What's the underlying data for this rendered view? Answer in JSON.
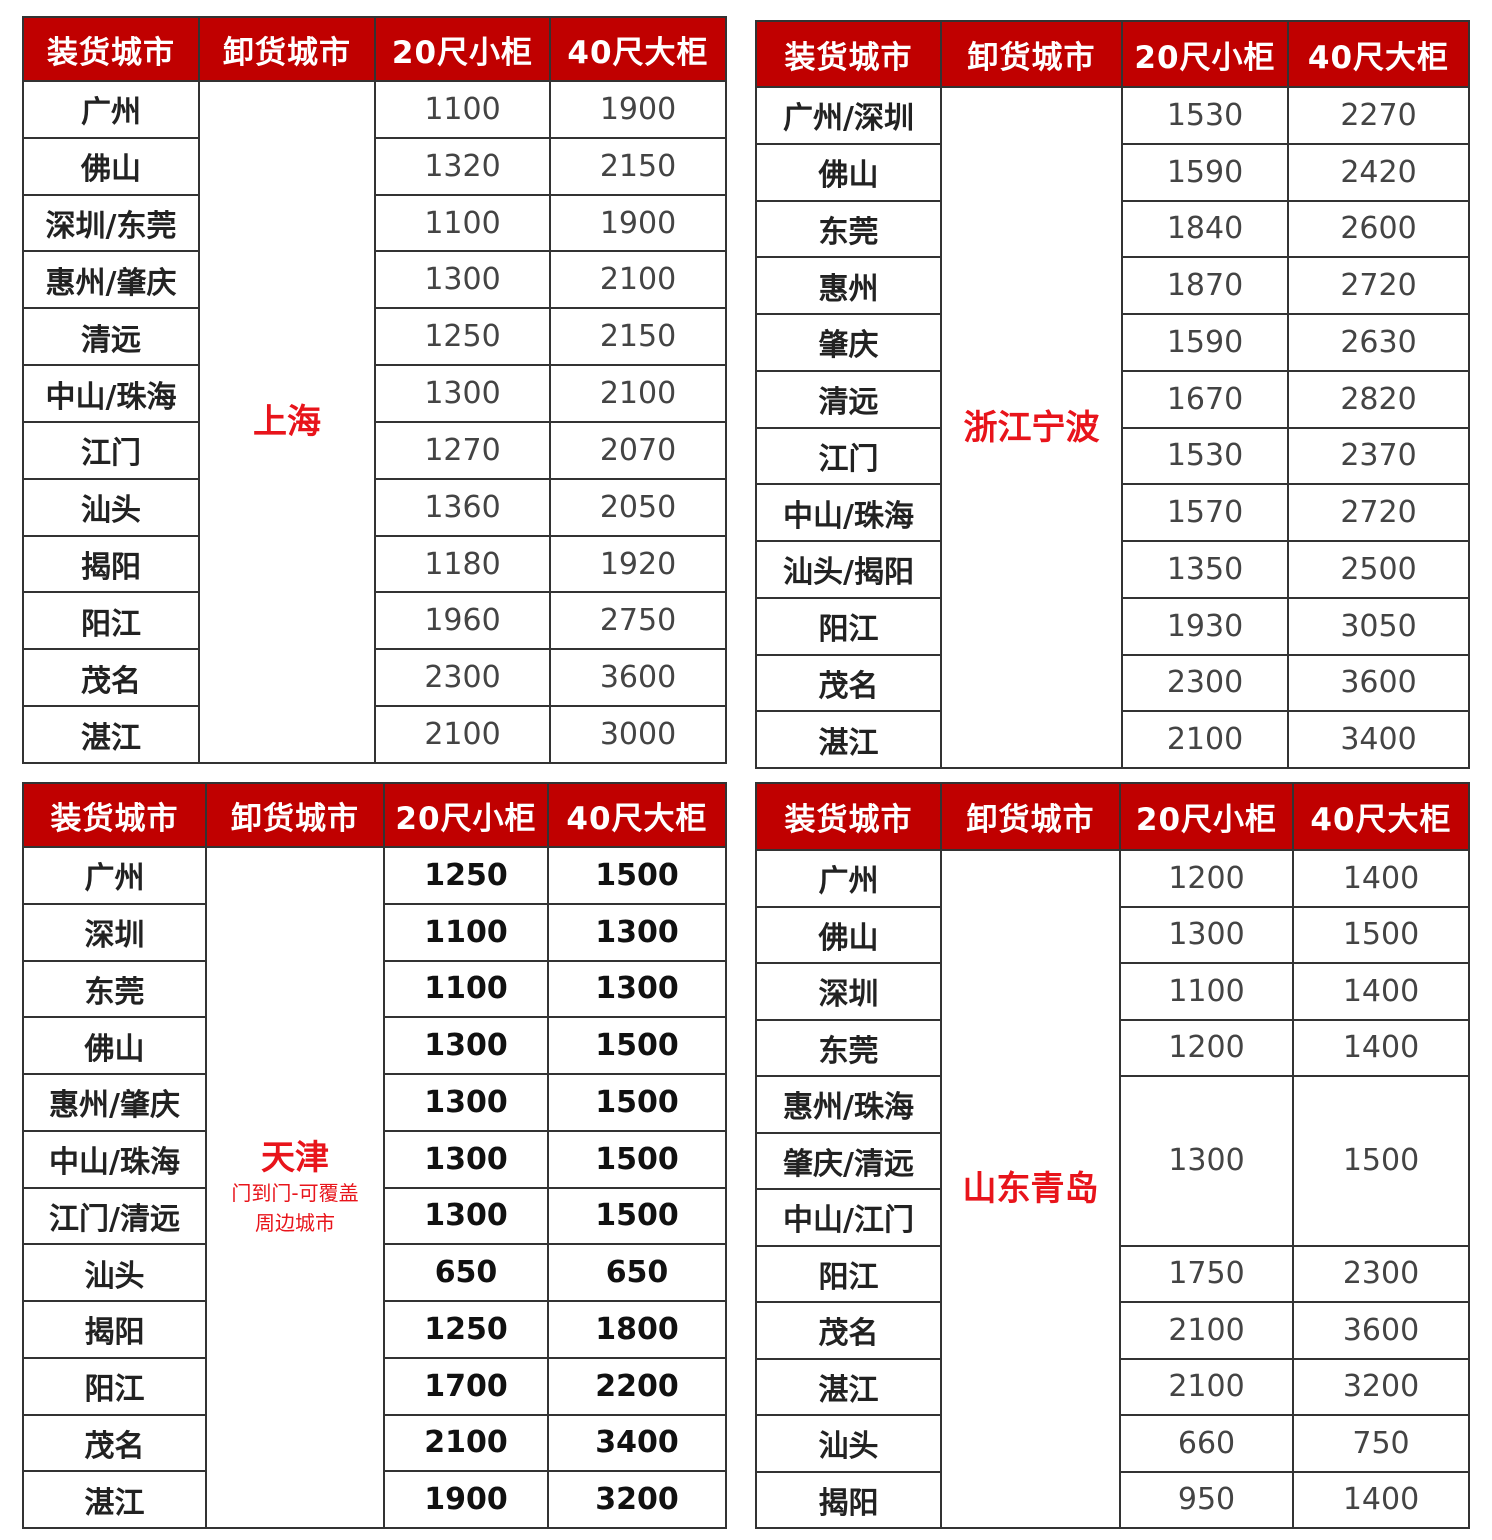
{
  "accent_color": "#c00000",
  "destination_color": "#e8141b",
  "headers": [
    "装货城市",
    "卸货城市",
    "20尺小柜",
    "40尺大柜"
  ],
  "tables": [
    {
      "destination": "上海",
      "destination_note": [
        "",
        ""
      ],
      "rows": [
        {
          "load": "广州",
          "p20": "1100",
          "p40": "1900"
        },
        {
          "load": "佛山",
          "p20": "1320",
          "p40": "2150"
        },
        {
          "load": "深圳/东莞",
          "p20": "1100",
          "p40": "1900"
        },
        {
          "load": "惠州/肇庆",
          "p20": "1300",
          "p40": "2100"
        },
        {
          "load": "清远",
          "p20": "1250",
          "p40": "2150"
        },
        {
          "load": "中山/珠海",
          "p20": "1300",
          "p40": "2100"
        },
        {
          "load": "江门",
          "p20": "1270",
          "p40": "2070"
        },
        {
          "load": "汕头",
          "p20": "1360",
          "p40": "2050"
        },
        {
          "load": "揭阳",
          "p20": "1180",
          "p40": "1920"
        },
        {
          "load": "阳江",
          "p20": "1960",
          "p40": "2750"
        },
        {
          "load": "茂名",
          "p20": "2300",
          "p40": "3600"
        },
        {
          "load": "湛江",
          "p20": "2100",
          "p40": "3000"
        }
      ]
    },
    {
      "destination": "浙江宁波",
      "destination_note": [
        "",
        ""
      ],
      "rows": [
        {
          "load": "广州/深圳",
          "p20": "1530",
          "p40": "2270"
        },
        {
          "load": "佛山",
          "p20": "1590",
          "p40": "2420"
        },
        {
          "load": "东莞",
          "p20": "1840",
          "p40": "2600"
        },
        {
          "load": "惠州",
          "p20": "1870",
          "p40": "2720"
        },
        {
          "load": "肇庆",
          "p20": "1590",
          "p40": "2630"
        },
        {
          "load": "清远",
          "p20": "1670",
          "p40": "2820"
        },
        {
          "load": "江门",
          "p20": "1530",
          "p40": "2370"
        },
        {
          "load": "中山/珠海",
          "p20": "1570",
          "p40": "2720"
        },
        {
          "load": "汕头/揭阳",
          "p20": "1350",
          "p40": "2500"
        },
        {
          "load": "阳江",
          "p20": "1930",
          "p40": "3050"
        },
        {
          "load": "茂名",
          "p20": "2300",
          "p40": "3600"
        },
        {
          "load": "湛江",
          "p20": "2100",
          "p40": "3400"
        }
      ]
    },
    {
      "destination": "天津",
      "destination_note": [
        "门到门-可覆盖",
        "周边城市"
      ],
      "rows": [
        {
          "load": "广州",
          "p20": "1250",
          "p40": "1500"
        },
        {
          "load": "深圳",
          "p20": "1100",
          "p40": "1300"
        },
        {
          "load": "东莞",
          "p20": "1100",
          "p40": "1300"
        },
        {
          "load": "佛山",
          "p20": "1300",
          "p40": "1500"
        },
        {
          "load": "惠州/肇庆",
          "p20": "1300",
          "p40": "1500"
        },
        {
          "load": "中山/珠海",
          "p20": "1300",
          "p40": "1500"
        },
        {
          "load": "江门/清远",
          "p20": "1300",
          "p40": "1500"
        },
        {
          "load": "汕头",
          "p20": "650",
          "p40": "650"
        },
        {
          "load": "揭阳",
          "p20": "1250",
          "p40": "1800"
        },
        {
          "load": "阳江",
          "p20": "1700",
          "p40": "2200"
        },
        {
          "load": "茂名",
          "p20": "2100",
          "p40": "3400"
        },
        {
          "load": "湛江",
          "p20": "1900",
          "p40": "3200"
        }
      ]
    },
    {
      "destination": "山东青岛",
      "destination_note": [
        "",
        ""
      ],
      "rows": [
        {
          "load": "广州",
          "p20": "1200",
          "p40": "1400"
        },
        {
          "load": "佛山",
          "p20": "1300",
          "p40": "1500"
        },
        {
          "load": "深圳",
          "p20": "1100",
          "p40": "1400"
        },
        {
          "load": "东莞",
          "p20": "1200",
          "p40": "1400"
        },
        {
          "load": "惠州/珠海",
          "p20": "1300",
          "p40": "1500"
        },
        {
          "load": "肇庆/清远",
          "p20": null,
          "p40": null
        },
        {
          "load": "中山/江门",
          "p20": null,
          "p40": null
        },
        {
          "load": "阳江",
          "p20": "1750",
          "p40": "2300"
        },
        {
          "load": "茂名",
          "p20": "2100",
          "p40": "3600"
        },
        {
          "load": "湛江",
          "p20": "2100",
          "p40": "3200"
        },
        {
          "load": "汕头",
          "p20": "660",
          "p40": "750"
        },
        {
          "load": "揭阳",
          "p20": "950",
          "p40": "1400"
        }
      ]
    }
  ]
}
